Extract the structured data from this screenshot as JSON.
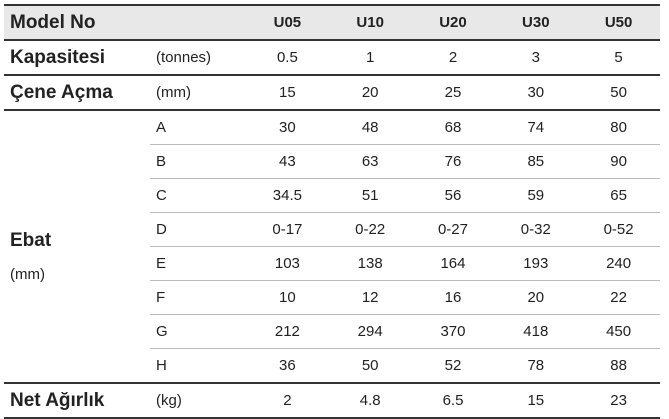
{
  "header": {
    "label": "Model No",
    "models": [
      "U05",
      "U10",
      "U20",
      "U30",
      "U50"
    ]
  },
  "rows": [
    {
      "label": "Kapasitesi",
      "unit": "(tonnes)",
      "values": [
        0.5,
        1,
        2,
        3,
        5
      ]
    },
    {
      "label": "Çene Açma",
      "unit": "(mm)",
      "values": [
        15,
        20,
        25,
        30,
        50
      ]
    }
  ],
  "ebat": {
    "label": "Ebat",
    "unit": "(mm)",
    "rows": [
      {
        "key": "A",
        "values": [
          30,
          48,
          68,
          74,
          80
        ]
      },
      {
        "key": "B",
        "values": [
          43,
          63,
          76,
          85,
          90
        ]
      },
      {
        "key": "C",
        "values": [
          34.5,
          51,
          56,
          59,
          65
        ]
      },
      {
        "key": "D",
        "values": [
          "0-17",
          "0-22",
          "0-27",
          "0-32",
          "0-52"
        ]
      },
      {
        "key": "E",
        "values": [
          103,
          138,
          164,
          193,
          240
        ]
      },
      {
        "key": "F",
        "values": [
          10,
          12,
          16,
          20,
          22
        ]
      },
      {
        "key": "G",
        "values": [
          212,
          294,
          370,
          418,
          450
        ]
      },
      {
        "key": "H",
        "values": [
          36,
          50,
          52,
          78,
          88
        ]
      }
    ]
  },
  "footer": {
    "label": "Net Ağırlık",
    "unit": "(kg)",
    "values": [
      2,
      4.8,
      6.5,
      15,
      23
    ]
  }
}
